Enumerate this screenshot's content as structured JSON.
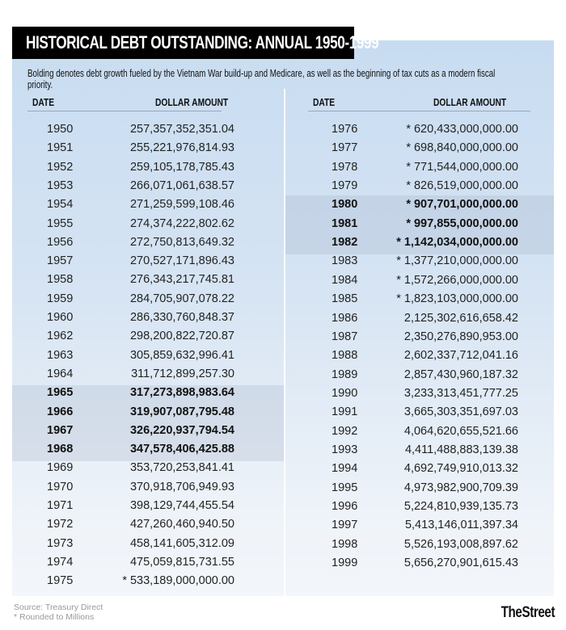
{
  "title": "HISTORICAL DEBT OUTSTANDING: ANNUAL 1950-1999",
  "note": "Bolding denotes debt growth fueled by the Vietnam War build-up and Medicare, as well as the beginning of tax cuts as a modern fiscal priority.",
  "columns": {
    "date": "DATE",
    "amount": "DOLLAR AMOUNT"
  },
  "colors": {
    "title_bg": "#000000",
    "panel_top": "#c8dcf1",
    "panel_bottom": "#f3f6fa",
    "highlight": "#b9c6d6"
  },
  "left_rows": [
    {
      "date": "1950",
      "amount": "257,357,352,351.04",
      "bold": false
    },
    {
      "date": "1951",
      "amount": "255,221,976,814.93",
      "bold": false
    },
    {
      "date": "1952",
      "amount": "259,105,178,785.43",
      "bold": false
    },
    {
      "date": "1953",
      "amount": "266,071,061,638.57",
      "bold": false
    },
    {
      "date": "1954",
      "amount": "271,259,599,108.46",
      "bold": false
    },
    {
      "date": "1955",
      "amount": "274,374,222,802.62",
      "bold": false
    },
    {
      "date": "1956",
      "amount": "272,750,813,649.32",
      "bold": false
    },
    {
      "date": "1957",
      "amount": "270,527,171,896.43",
      "bold": false
    },
    {
      "date": "1958",
      "amount": "276,343,217,745.81",
      "bold": false
    },
    {
      "date": "1959",
      "amount": "284,705,907,078.22",
      "bold": false
    },
    {
      "date": "1960",
      "amount": "286,330,760,848.37",
      "bold": false
    },
    {
      "date": "1962",
      "amount": "298,200,822,720.87",
      "bold": false
    },
    {
      "date": "1963",
      "amount": "305,859,632,996.41",
      "bold": false
    },
    {
      "date": "1964",
      "amount": "311,712,899,257.30",
      "bold": false
    },
    {
      "date": "1965",
      "amount": "317,273,898,983.64",
      "bold": true
    },
    {
      "date": "1966",
      "amount": "319,907,087,795.48",
      "bold": true
    },
    {
      "date": "1967",
      "amount": "326,220,937,794.54",
      "bold": true
    },
    {
      "date": "1968",
      "amount": "347,578,406,425.88",
      "bold": true
    },
    {
      "date": "1969",
      "amount": "353,720,253,841.41",
      "bold": false
    },
    {
      "date": "1970",
      "amount": "370,918,706,949.93",
      "bold": false
    },
    {
      "date": "1971",
      "amount": "398,129,744,455.54",
      "bold": false
    },
    {
      "date": "1972",
      "amount": "427,260,460,940.50",
      "bold": false
    },
    {
      "date": "1973",
      "amount": "458,141,605,312.09",
      "bold": false
    },
    {
      "date": "1974",
      "amount": "475,059,815,731.55",
      "bold": false
    },
    {
      "date": "1975",
      "amount": "* 533,189,000,000.00",
      "bold": false
    }
  ],
  "right_rows": [
    {
      "date": "1976",
      "amount": "* 620,433,000,000.00",
      "bold": false
    },
    {
      "date": "1977",
      "amount": "* 698,840,000,000.00",
      "bold": false
    },
    {
      "date": "1978",
      "amount": "* 771,544,000,000.00",
      "bold": false
    },
    {
      "date": "1979",
      "amount": "* 826,519,000,000.00",
      "bold": false
    },
    {
      "date": "1980",
      "amount": "* 907,701,000,000.00",
      "bold": true
    },
    {
      "date": "1981",
      "amount": "* 997,855,000,000.00",
      "bold": true
    },
    {
      "date": "1982",
      "amount": "* 1,142,034,000,000.00",
      "bold": true
    },
    {
      "date": "1983",
      "amount": "* 1,377,210,000,000.00",
      "bold": false
    },
    {
      "date": "1984",
      "amount": "* 1,572,266,000,000.00",
      "bold": false
    },
    {
      "date": "1985",
      "amount": "* 1,823,103,000,000.00",
      "bold": false
    },
    {
      "date": "1986",
      "amount": "2,125,302,616,658.42",
      "bold": false
    },
    {
      "date": "1987",
      "amount": "2,350,276,890,953.00",
      "bold": false
    },
    {
      "date": "1988",
      "amount": "2,602,337,712,041.16",
      "bold": false
    },
    {
      "date": "1989",
      "amount": "2,857,430,960,187.32",
      "bold": false
    },
    {
      "date": "1990",
      "amount": "3,233,313,451,777.25",
      "bold": false
    },
    {
      "date": "1991",
      "amount": "3,665,303,351,697.03",
      "bold": false
    },
    {
      "date": "1992",
      "amount": "4,064,620,655,521.66",
      "bold": false
    },
    {
      "date": "1993",
      "amount": "4,411,488,883,139.38",
      "bold": false
    },
    {
      "date": "1994",
      "amount": "4,692,749,910,013.32",
      "bold": false
    },
    {
      "date": "1995",
      "amount": "4,973,982,900,709.39",
      "bold": false
    },
    {
      "date": "1996",
      "amount": "5,224,810,939,135.73",
      "bold": false
    },
    {
      "date": "1997",
      "amount": "5,413,146,011,397.34",
      "bold": false
    },
    {
      "date": "1998",
      "amount": "5,526,193,008,897.62",
      "bold": false
    },
    {
      "date": "1999",
      "amount": "5,656,270,901,615.43",
      "bold": false
    }
  ],
  "footer": {
    "source": "Source: Treasury Direct",
    "footnote": "* Rounded to Millions",
    "logo": "TheStreet"
  }
}
